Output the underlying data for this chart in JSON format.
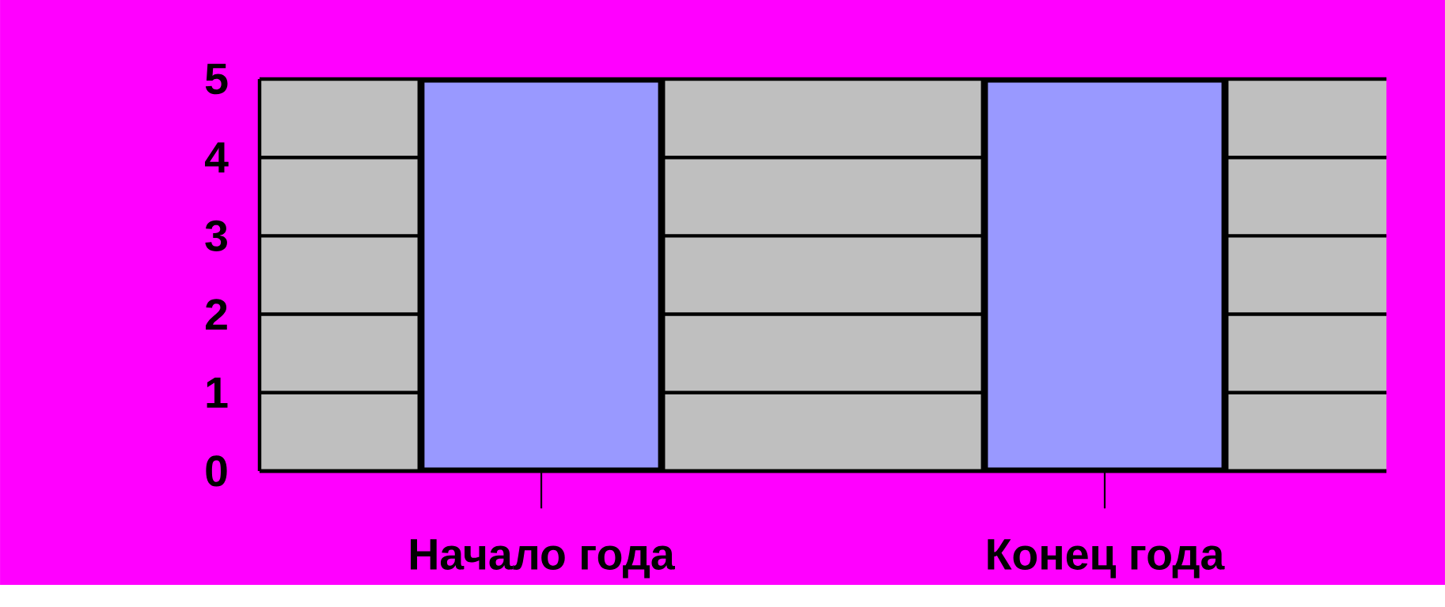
{
  "chart_data": {
    "type": "bar",
    "categories": [
      "Начало года",
      "Конец года"
    ],
    "values": [
      5,
      5
    ],
    "color": "#9999ff",
    "ylim": [
      0,
      5
    ],
    "yticks": [
      0,
      1,
      2,
      3,
      4,
      5
    ],
    "grid": "y"
  }
}
